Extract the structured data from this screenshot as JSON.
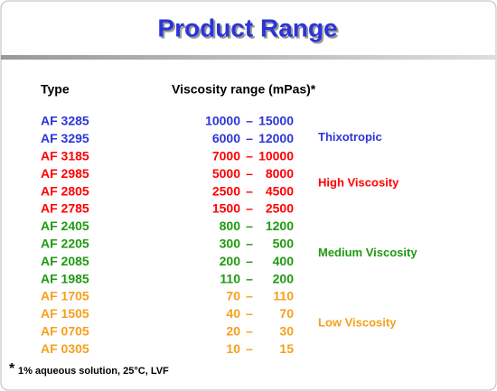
{
  "title": "Product Range",
  "header": {
    "type": "Type",
    "viscosity": "Viscosity range (mPas)*"
  },
  "range_separator": "–",
  "groups": [
    {
      "label": "Thixotropic",
      "color": "#2b35d8",
      "rows": [
        {
          "type": "AF 3285",
          "low": "10000",
          "high": "15000"
        },
        {
          "type": "AF 3295",
          "low": "6000",
          "high": "12000"
        }
      ]
    },
    {
      "label": "High Viscosity",
      "color": "#ff0000",
      "rows": [
        {
          "type": "AF 3185",
          "low": "7000",
          "high": "10000"
        },
        {
          "type": "AF 2985",
          "low": "5000",
          "high": "8000"
        },
        {
          "type": "AF 2805",
          "low": "2500",
          "high": "4500"
        },
        {
          "type": "AF 2785",
          "low": "1500",
          "high": "2500"
        }
      ]
    },
    {
      "label": "Medium Viscosity",
      "color": "#1f9a10",
      "rows": [
        {
          "type": "AF 2405",
          "low": "800",
          "high": "1200"
        },
        {
          "type": "AF 2205",
          "low": "300",
          "high": "500"
        },
        {
          "type": "AF 2085",
          "low": "200",
          "high": "400"
        },
        {
          "type": "AF 1985",
          "low": "110",
          "high": "200"
        }
      ]
    },
    {
      "label": "Low Viscosity",
      "color": "#f5a01e",
      "rows": [
        {
          "type": "AF 1705",
          "low": "70",
          "high": "110"
        },
        {
          "type": "AF 1505",
          "low": "40",
          "high": "70"
        },
        {
          "type": "AF 0705",
          "low": "20",
          "high": "30"
        },
        {
          "type": "AF 0305",
          "low": "10",
          "high": "15"
        }
      ]
    }
  ],
  "footnote": {
    "marker": "*",
    "text": "1% aqueous solution, 25°C, LVF"
  }
}
